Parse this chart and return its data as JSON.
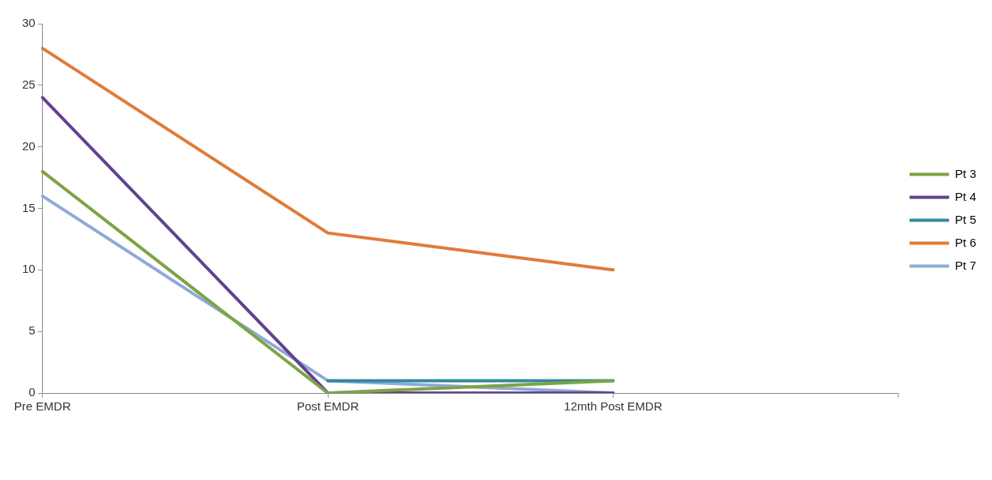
{
  "chart_data": {
    "type": "line",
    "categories": [
      "Pre EMDR",
      "Post EMDR",
      "12mth Post EMDR",
      null
    ],
    "series": [
      {
        "name": "Pt 3",
        "color": "#7ea345",
        "values": [
          18,
          0,
          1,
          null
        ]
      },
      {
        "name": "Pt 4",
        "color": "#62428f",
        "values": [
          24,
          0,
          0,
          null
        ]
      },
      {
        "name": "Pt 5",
        "color": "#31899f",
        "values": [
          null,
          1,
          1,
          null
        ]
      },
      {
        "name": "Pt 6",
        "color": "#e07b39",
        "values": [
          28,
          13,
          10,
          null
        ]
      },
      {
        "name": "Pt 7",
        "color": "#8eaad8",
        "values": [
          16,
          1,
          0,
          null
        ]
      }
    ],
    "ylim": [
      0,
      30
    ],
    "yticks": [
      0,
      5,
      10,
      15,
      20,
      25,
      30
    ],
    "legend": "right",
    "marker": "none",
    "line_style": "solid"
  }
}
